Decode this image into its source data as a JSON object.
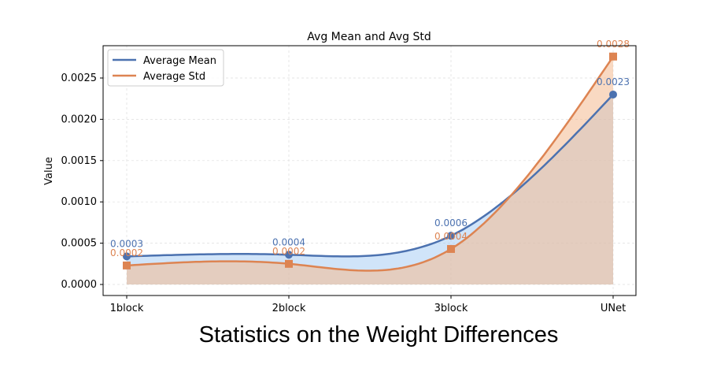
{
  "chart_data": {
    "type": "line",
    "title": "Avg Mean and Avg Std",
    "xlabel": "Statistics on the Weight Differences",
    "ylabel": "Value",
    "categories": [
      "1block",
      "2block",
      "3block",
      "UNet"
    ],
    "ylim": [
      -0.00013,
      0.0029
    ],
    "yticks": [
      "0.0000",
      "0.0005",
      "0.0010",
      "0.0015",
      "0.0020",
      "0.0025"
    ],
    "ytick_values": [
      0,
      0.0005,
      0.001,
      0.0015,
      0.002,
      0.0025
    ],
    "grid": true,
    "legend_placement": "top-left",
    "series": [
      {
        "name": "Average Mean",
        "values": [
          0.00034,
          0.00036,
          0.00059,
          0.0023
        ],
        "labels": [
          "0.0003",
          "0.0004",
          "0.0006",
          "0.0023"
        ],
        "color": "#4C72B0",
        "fill": "#a1c9f4",
        "marker": "circle"
      },
      {
        "name": "Average Std",
        "values": [
          0.00023,
          0.00025,
          0.00043,
          0.00276
        ],
        "labels": [
          "0.0002",
          "0.0002",
          "0.0004",
          "0.0028"
        ],
        "color": "#DD8452",
        "fill": "#f4b98f",
        "marker": "square"
      }
    ]
  }
}
